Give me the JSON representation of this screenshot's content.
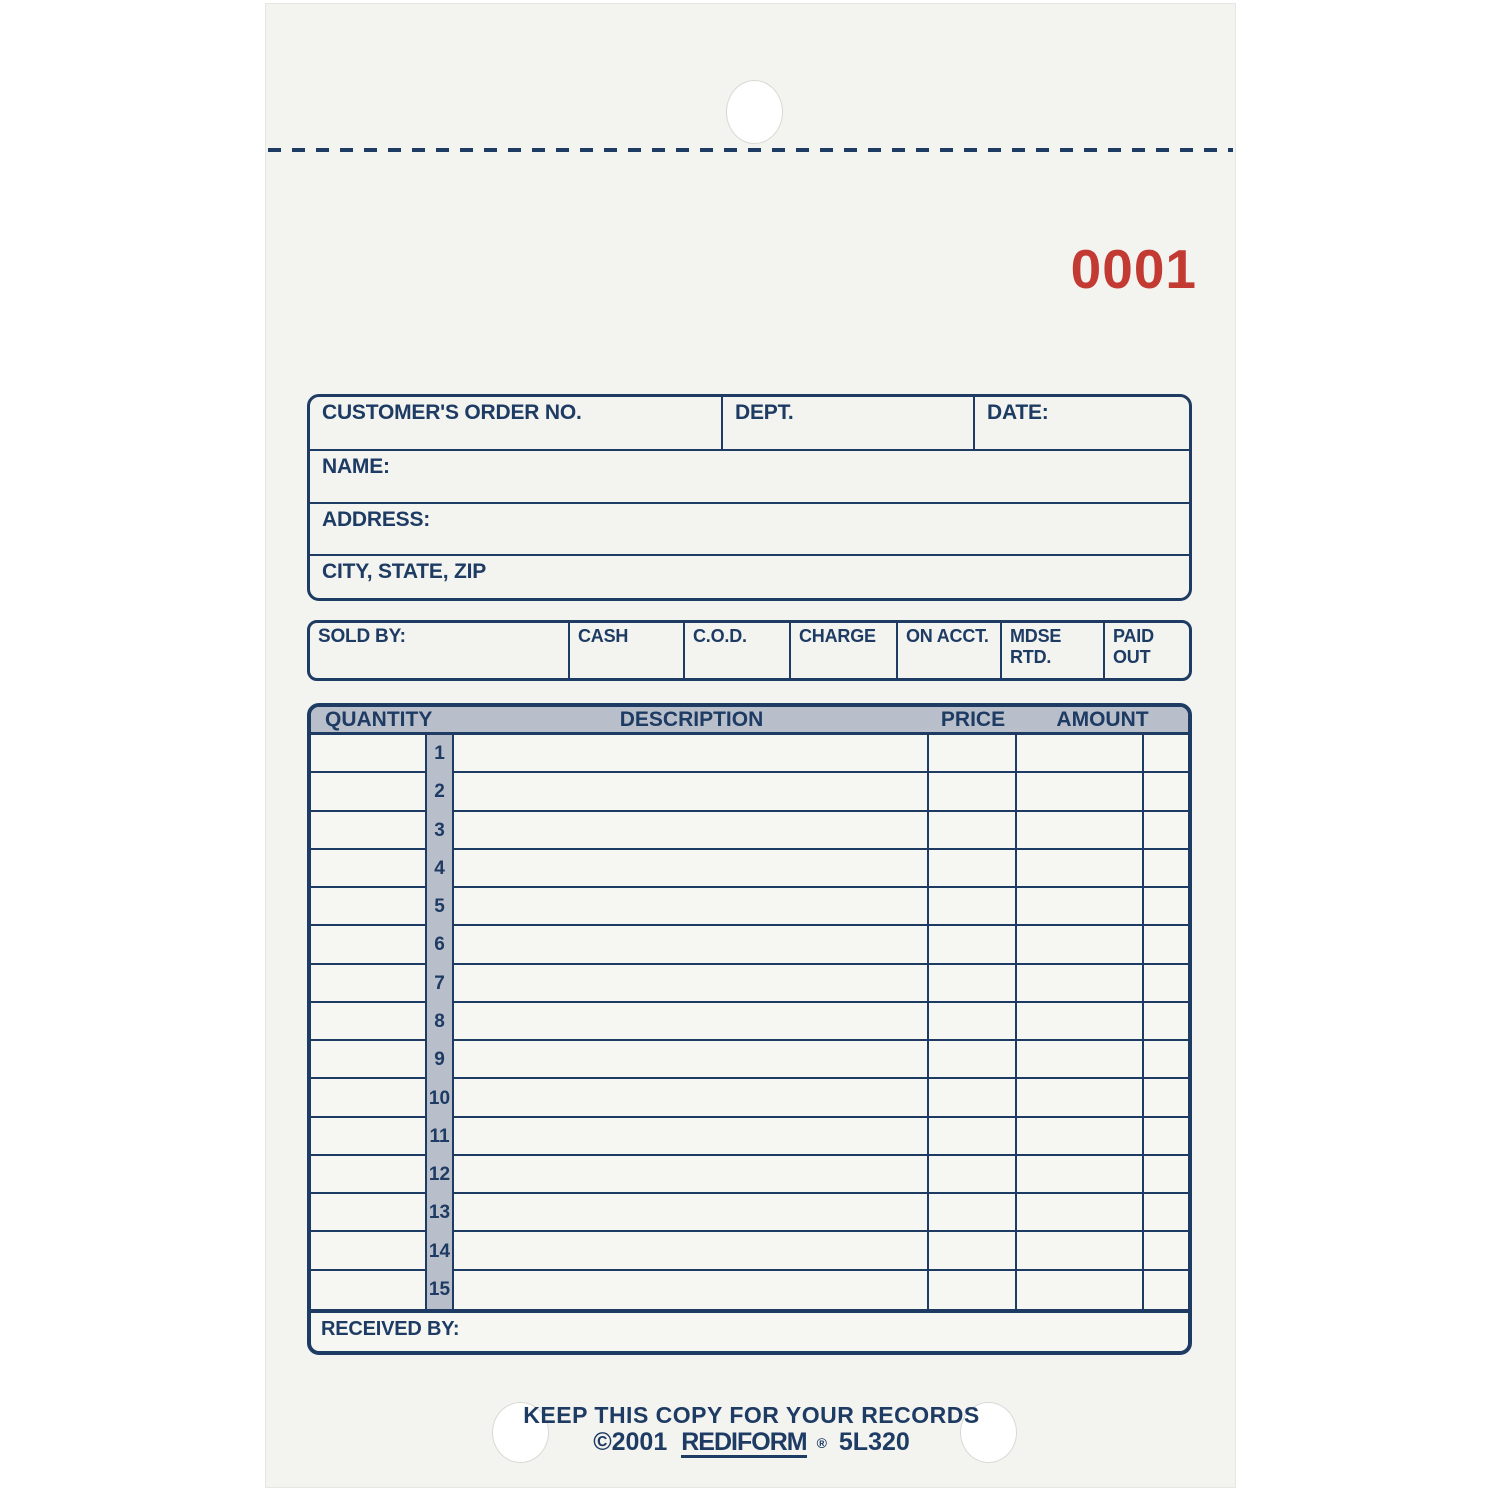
{
  "page": {
    "form_number": "0001",
    "colors": {
      "navy": "#1d3b63",
      "red": "#c23a31",
      "band_gray": "#b9bfca",
      "paper": "#f3f3f0"
    }
  },
  "customer_box": {
    "order_no_label": "CUSTOMER'S ORDER NO.",
    "dept_label": "DEPT.",
    "date_label": "DATE:",
    "name_label": "NAME:",
    "address_label": "ADDRESS:",
    "city_label": "CITY, STATE, ZIP"
  },
  "payment_box": {
    "sold_by_label": "SOLD BY:",
    "methods": [
      "CASH",
      "C.O.D.",
      "CHARGE",
      "ON ACCT.",
      "MDSE RTD.",
      "PAID OUT"
    ]
  },
  "items_table": {
    "headers": {
      "quantity": "QUANTITY",
      "description": "DESCRIPTION",
      "price": "PRICE",
      "amount": "AMOUNT"
    },
    "row_numbers": [
      "1",
      "2",
      "3",
      "4",
      "5",
      "6",
      "7",
      "8",
      "9",
      "10",
      "11",
      "12",
      "13",
      "14",
      "15"
    ],
    "received_by_label": "RECEIVED BY:"
  },
  "footer": {
    "keep_copy": "KEEP THIS COPY FOR YOUR RECORDS",
    "copyright": "©2001",
    "brand": "REDIFORM",
    "reg_mark": "®",
    "product_code": "5L320"
  }
}
